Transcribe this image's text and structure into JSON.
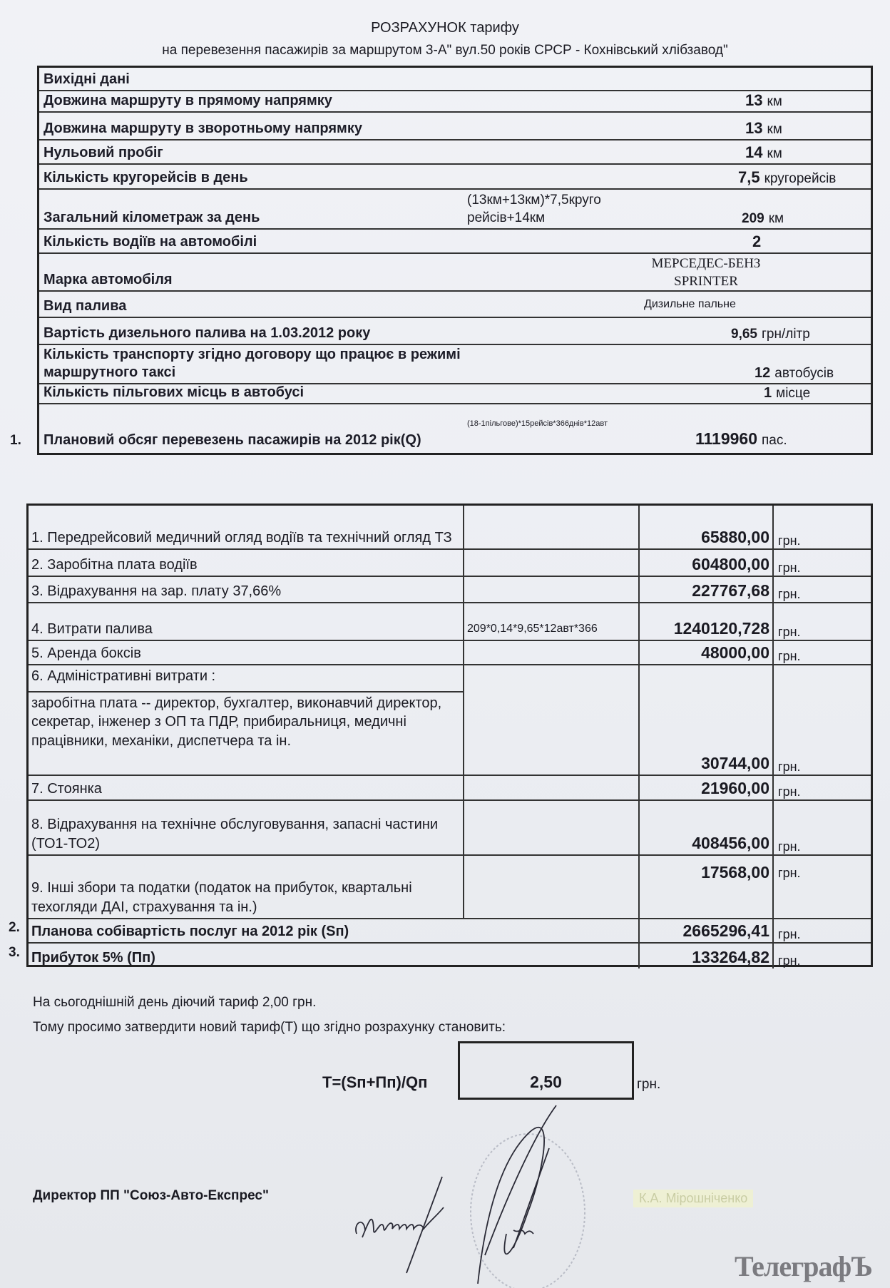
{
  "title": "РОЗРАХУНОК тарифу",
  "subtitle": "на перевезення пасажирів за маршрутом 3-А\" вул.50 років СРСР - Кохнівський хлібзавод\"",
  "input_table": {
    "header": "Вихідні дані",
    "rows": [
      {
        "label": "Довжина маршруту в прямому напрямку",
        "value": "13",
        "unit": "км"
      },
      {
        "label": "Довжина маршруту в зворотньому напрямку",
        "value": "13",
        "unit": "км"
      },
      {
        "label": "Нульовий пробіг",
        "value": "14",
        "unit": "км"
      },
      {
        "label": "Кількість кругорейсів в день",
        "value": "7,5",
        "unit": "кругорейсів"
      },
      {
        "label": "Загальний кілометраж за день",
        "note": "(13км+13км)*7,5круго рейсів+14км",
        "value": "209",
        "unit": "км"
      },
      {
        "label": "Кількість водіїв на автомобілі",
        "value": "2",
        "unit": ""
      },
      {
        "label": "Марка автомобіля",
        "value": "МЕРСЕДЕС-БЕНЗ SPRINTER",
        "unit": ""
      },
      {
        "label": "Вид палива",
        "value": "Дизильне пальне",
        "unit": ""
      },
      {
        "label": "Вартість дизельного палива на 1.03.2012 року",
        "value": "9,65",
        "unit": "грн/літр"
      },
      {
        "label": "Кількість транспорту згідно договору що працює в режимі маршрутного таксі",
        "value": "12",
        "unit": "автобусів"
      },
      {
        "label": "Кількість пільгових місць в автобусі",
        "value": "1",
        "unit": "місце"
      },
      {
        "marker": "1.",
        "label": "Плановий обсяг перевезень пасажирів на 2012 рік(Q)",
        "note": "(18-1пільгове)*15рейсів*366днів*12авт",
        "value": "1119960",
        "unit": "пас."
      }
    ]
  },
  "cost_table": {
    "currency": "грн.",
    "rows": [
      {
        "label": "1. Передрейсовий медичний огляд водіїв  та технічний огляд ТЗ",
        "formula": "",
        "value": "65880,00"
      },
      {
        "label": "2. Заробітна плата  водіїв",
        "formula": "",
        "value": "604800,00"
      },
      {
        "label": "3. Відрахування на зар. плату 37,66%",
        "formula": "",
        "value": "227767,68"
      },
      {
        "label": "4. Витрати палива",
        "formula": "209*0,14*9,65*12авт*366",
        "value": "1240120,728"
      },
      {
        "label": "5. Аренда боксів",
        "formula": "",
        "value": "48000,00"
      },
      {
        "label": "6. Адміністративні витрати :",
        "sublabel": "заробітна плата --  директор, бухгалтер, виконавчий директор, секретар, інженер з ОП та ПДР, прибиральниця, медичні працівники, механіки, диспетчера та ін.",
        "formula": "",
        "value": "30744,00"
      },
      {
        "label": "7. Стоянка",
        "formula": "",
        "value": "21960,00"
      },
      {
        "label": "8. Відрахування на технічне обслуговування, запасні частини (ТО1-ТО2)",
        "formula": "",
        "value": "408456,00"
      },
      {
        "label": "9. Інші збори та податки (податок на прибуток, квартальні техогляди ДАІ, страхування та ін.)",
        "formula": "",
        "value": "17568,00"
      },
      {
        "marker": "2.",
        "label": "Планова собівартість послуг на 2012 рік (Sп)",
        "formula": "",
        "value": "2665296,41"
      },
      {
        "marker": "3.",
        "label": "Прибуток 5% (Пп)",
        "formula": "",
        "value": "133264,82"
      }
    ]
  },
  "footer": {
    "current_tariff": "На сьогоднішній день діючий тариф 2,00 грн.",
    "request": "Тому просимо затвердити новий тариф(Т) що згідно розрахунку становить:",
    "formula": "T=(Sп+Пп)/Qп",
    "tariff_value": "2,50",
    "tariff_unit": "грн.",
    "signatory_title": "Директор ПП \"Союз-Авто-Експрес\"",
    "signatory_name": "К.А. Мірошніченко"
  },
  "watermark": "ТелеграфЪ"
}
